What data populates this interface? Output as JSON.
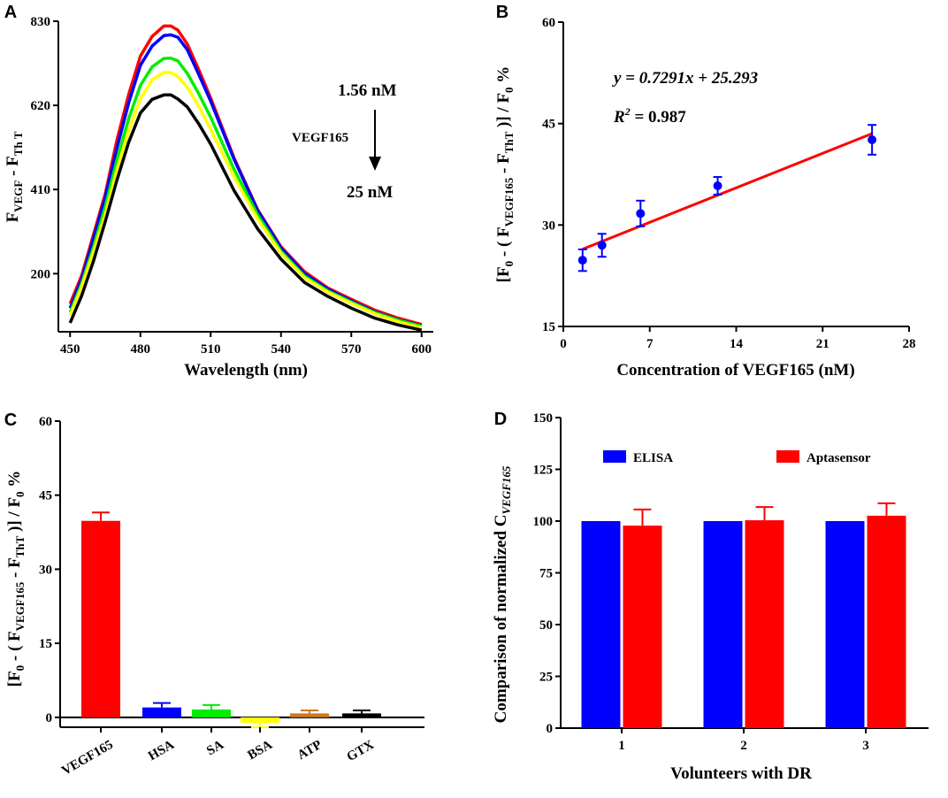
{
  "panels": {
    "A": {
      "label": "A"
    },
    "B": {
      "label": "B"
    },
    "C": {
      "label": "C"
    },
    "D": {
      "label": "D"
    }
  },
  "colors": {
    "red": "#ff0000",
    "blue": "#0000ff",
    "green": "#00ee00",
    "yellow": "#ffff00",
    "black": "#000000",
    "orange": "#cc7a1f"
  },
  "chart_data": [
    {
      "id": "A",
      "type": "line",
      "title": "",
      "xlabel": "Wavelength (nm)",
      "ylabel_main": "F",
      "ylabel_sub1": "VEGF",
      "ylabel_mid": " - F",
      "ylabel_sub2": "Th T",
      "xlim": [
        445,
        605
      ],
      "ylim": [
        55,
        830
      ],
      "xticks": [
        450,
        480,
        510,
        540,
        570,
        600
      ],
      "yticks": [
        200,
        410,
        620,
        830
      ],
      "xtick_labels": [
        "450",
        "480",
        "510",
        "540",
        "570",
        "600"
      ],
      "ytick_labels": [
        "200",
        "410",
        "620",
        "830"
      ],
      "x": [
        450,
        455,
        460,
        465,
        470,
        475,
        480,
        485,
        490,
        493,
        496,
        500,
        505,
        510,
        520,
        530,
        540,
        550,
        560,
        570,
        580,
        590,
        600
      ],
      "series": [
        {
          "name": "red",
          "color": "#ff0000",
          "values": [
            125,
            196,
            298,
            399,
            534,
            647,
            743,
            792,
            818,
            818,
            808,
            773,
            708,
            638,
            488,
            360,
            267,
            205,
            164,
            136,
            109,
            89,
            73
          ]
        },
        {
          "name": "blue",
          "color": "#0000ff",
          "values": [
            114,
            188,
            288,
            391,
            514,
            626,
            720,
            768,
            794,
            796,
            790,
            759,
            696,
            630,
            485,
            358,
            264,
            200,
            161,
            132,
            105,
            85,
            70
          ]
        },
        {
          "name": "green",
          "color": "#00ee00",
          "values": [
            103,
            176,
            267,
            367,
            484,
            587,
            670,
            716,
            737,
            738,
            731,
            700,
            648,
            590,
            460,
            347,
            256,
            194,
            157,
            129,
            103,
            84,
            69
          ]
        },
        {
          "name": "yellow",
          "color": "#ffff00",
          "values": [
            95,
            168,
            255,
            348,
            460,
            556,
            636,
            684,
            702,
            702,
            692,
            665,
            617,
            560,
            441,
            337,
            251,
            190,
            154,
            126,
            100,
            80,
            65
          ]
        },
        {
          "name": "black",
          "color": "#000000",
          "values": [
            77,
            146,
            232,
            330,
            434,
            528,
            601,
            635,
            646,
            646,
            636,
            616,
            573,
            523,
            407,
            312,
            236,
            178,
            143,
            114,
            89,
            72,
            59
          ]
        }
      ],
      "annotations": {
        "top_conc": "1.56 nM",
        "arrow_label": "VEGF165",
        "bottom_conc": "25 nM"
      }
    },
    {
      "id": "B",
      "type": "scatter",
      "xlabel": "Concentration of VEGF165 (nM)",
      "ylabel": "[F0 - ( FVEGF165 - FThT )] / F0 %",
      "xlim": [
        0,
        28
      ],
      "ylim": [
        15,
        60
      ],
      "xticks": [
        0,
        7,
        14,
        21,
        28
      ],
      "yticks": [
        15,
        30,
        45,
        60
      ],
      "xtick_labels": [
        "0",
        "7",
        "14",
        "21",
        "28"
      ],
      "ytick_labels": [
        "15",
        "30",
        "45",
        "60"
      ],
      "x": [
        1.56,
        3.13,
        6.25,
        12.5,
        25
      ],
      "y": [
        24.8,
        27.0,
        31.7,
        35.8,
        42.6
      ],
      "error": [
        1.6,
        1.7,
        1.9,
        1.3,
        2.2
      ],
      "fit": {
        "slope": 0.7291,
        "intercept": 25.293,
        "x_range": [
          1.56,
          25
        ]
      },
      "equation": "y = 0.7291x + 25.293",
      "r2_label": "R",
      "r2_sup": "2",
      "r2_value": " = 0.987"
    },
    {
      "id": "C",
      "type": "bar",
      "ylabel": "[F0 - ( FVEGF165 - FThT )] / F0 %",
      "ylim": [
        -2,
        60
      ],
      "yticks": [
        0,
        15,
        30,
        45,
        60
      ],
      "ytick_labels": [
        "0",
        "15",
        "30",
        "45",
        "60"
      ],
      "categories": [
        "VEGF165",
        "HSA",
        "SA",
        "BSA",
        "ATP",
        "GTX"
      ],
      "values": [
        39.8,
        2.0,
        1.6,
        -1.1,
        0.8,
        0.8
      ],
      "error": [
        1.7,
        0.9,
        0.9,
        0.9,
        0.6,
        0.6
      ],
      "colors": [
        "#ff0000",
        "#0000ff",
        "#00ee00",
        "#ffff00",
        "#cc7a1f",
        "#000000"
      ]
    },
    {
      "id": "D",
      "type": "bar",
      "xlabel": "Volunteers with DR",
      "ylabel_main": "Comparison of normalized C",
      "ylabel_sub": "VEGF165",
      "ylim": [
        0,
        150
      ],
      "yticks": [
        0,
        25,
        50,
        75,
        100,
        125,
        150
      ],
      "ytick_labels": [
        "0",
        "25",
        "50",
        "75",
        "100",
        "125",
        "150"
      ],
      "categories": [
        "1",
        "2",
        "3"
      ],
      "series": [
        {
          "name": "ELISA",
          "color": "#0000ff",
          "values": [
            100,
            100,
            100
          ],
          "error": [
            0,
            0,
            0
          ]
        },
        {
          "name": "Aptasensor",
          "color": "#ff0000",
          "values": [
            97.8,
            100.4,
            102.6
          ],
          "error": [
            7.8,
            6.4,
            6.0
          ]
        }
      ],
      "legend": "top"
    }
  ]
}
